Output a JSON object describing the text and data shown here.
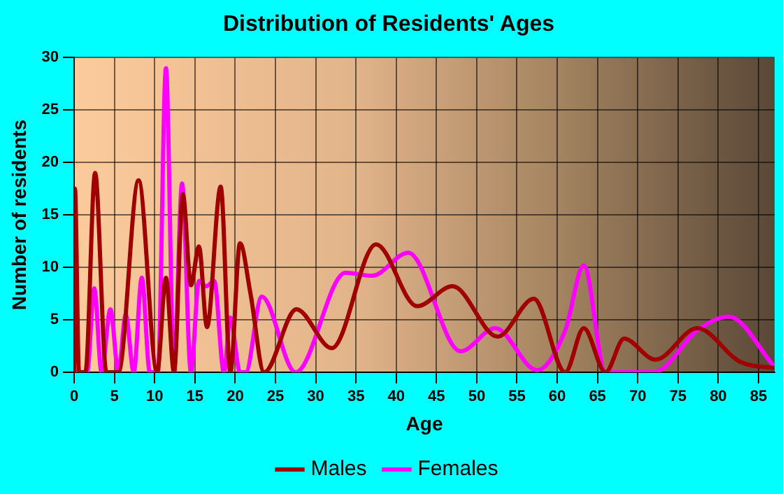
{
  "chart_data": {
    "type": "line",
    "title": "Distribution of Residents' Ages",
    "xlabel": "Age",
    "ylabel": "Number of residents",
    "xlim": [
      0,
      87
    ],
    "xticks": [
      0,
      5,
      10,
      15,
      20,
      25,
      30,
      35,
      40,
      45,
      50,
      55,
      60,
      65,
      70,
      75,
      80,
      85
    ],
    "ylim": [
      0,
      30
    ],
    "yticks": [
      0,
      5,
      10,
      15,
      20,
      25,
      30
    ],
    "grid": true,
    "legend": "bottom",
    "marker": "none",
    "series": [
      {
        "name": "Males",
        "color": "#a00000",
        "x": [
          0,
          0.1,
          0.6,
          1.4,
          2.6,
          4,
          5.5,
          8,
          10.3,
          11.4,
          12.4,
          13.5,
          14.5,
          15.5,
          16.5,
          18.2,
          19.4,
          20.6,
          21.9,
          23.6,
          27.6,
          32,
          37.5,
          42.6,
          47,
          52.6,
          57.1,
          61,
          63.3,
          66,
          68.3,
          72.2,
          77.4,
          82.7,
          87
        ],
        "values": [
          0,
          17.5,
          0,
          0,
          19,
          0,
          0,
          18.3,
          0,
          9,
          0,
          17,
          8.3,
          12,
          4.3,
          17.7,
          0,
          12.3,
          7.5,
          0,
          6,
          2.3,
          12.2,
          6.3,
          8.2,
          3.4,
          7,
          0,
          4.2,
          0,
          3.2,
          1.2,
          4.2,
          1,
          0.4
        ]
      },
      {
        "name": "Females",
        "color": "#ff00ff",
        "x": [
          0,
          1.6,
          2.5,
          3.4,
          4.5,
          5.5,
          6.4,
          7.4,
          8.4,
          9.4,
          10.4,
          11.4,
          12.4,
          13.4,
          14.5,
          15.5,
          16.4,
          17.4,
          18.6,
          19.4,
          20.6,
          21.3,
          23.3,
          27.5,
          33.7,
          37,
          41.5,
          48,
          52.3,
          57.5,
          61,
          63.3,
          66,
          72,
          77.4,
          81.3,
          87
        ],
        "values": [
          0,
          0,
          8,
          0,
          6,
          0,
          5.5,
          0,
          9,
          0,
          0,
          29,
          0,
          18,
          0,
          8.7,
          8.2,
          8.7,
          0,
          5.2,
          0,
          0,
          7.2,
          0,
          9.5,
          9.2,
          11.4,
          2,
          4.2,
          0.2,
          4,
          10.2,
          0,
          0,
          4,
          5.3,
          0.5
        ]
      }
    ]
  }
}
